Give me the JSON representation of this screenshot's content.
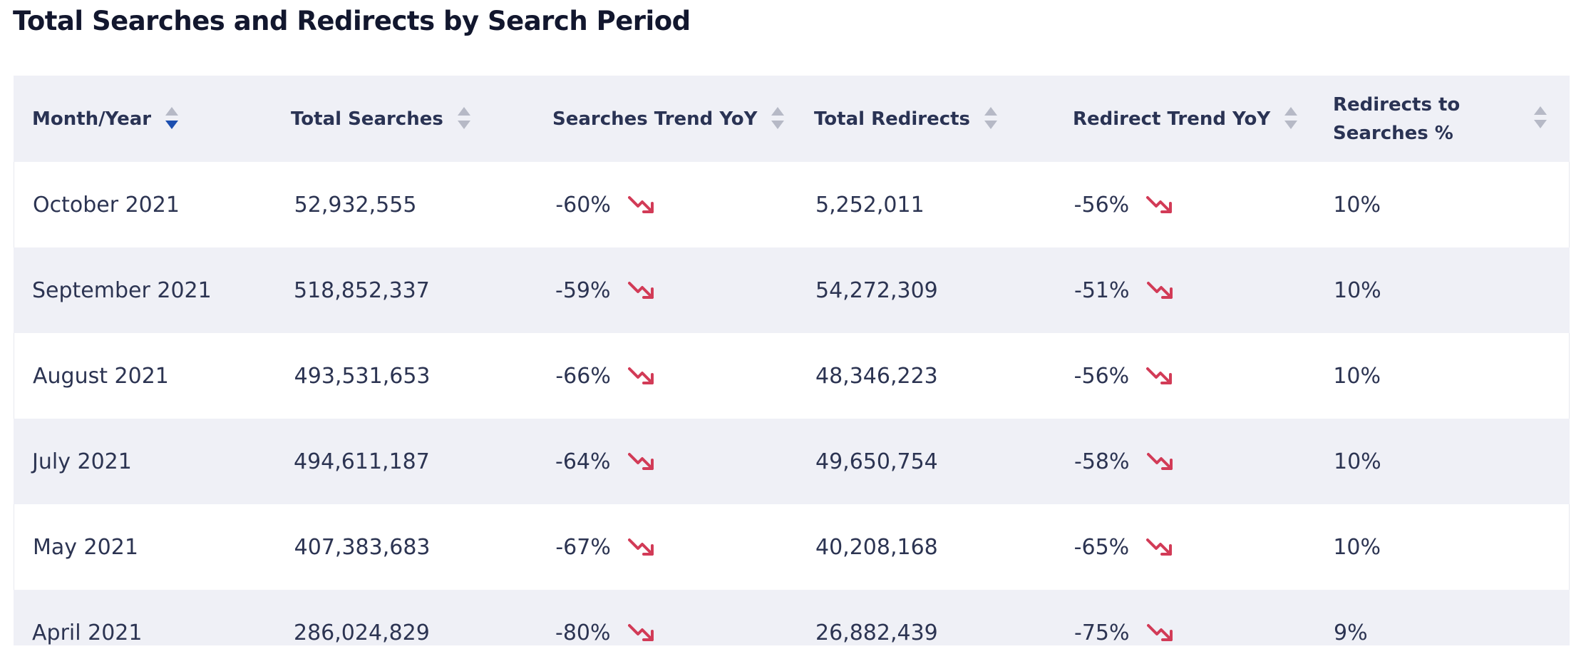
{
  "page": {
    "title": "Total Searches and Redirects by Search Period"
  },
  "table": {
    "columns": [
      {
        "label": "Month/Year",
        "sort": "descending"
      },
      {
        "label": "Total Searches",
        "sort": "none"
      },
      {
        "label": "Searches Trend YoY",
        "sort": "none"
      },
      {
        "label": "Total Redirects",
        "sort": "none"
      },
      {
        "label": "Redirect Trend YoY",
        "sort": "none"
      },
      {
        "label": "Redirects to Searches %",
        "sort": "none"
      }
    ],
    "rows": [
      {
        "month": "October 2021",
        "searches": "52,932,555",
        "searches_trend": "-60%",
        "redirects": "5,252,011",
        "redirect_trend": "-56%",
        "ratio": "10%"
      },
      {
        "month": "September 2021",
        "searches": "518,852,337",
        "searches_trend": "-59%",
        "redirects": "54,272,309",
        "redirect_trend": "-51%",
        "ratio": "10%"
      },
      {
        "month": "August 2021",
        "searches": "493,531,653",
        "searches_trend": "-66%",
        "redirects": "48,346,223",
        "redirect_trend": "-56%",
        "ratio": "10%"
      },
      {
        "month": "July 2021",
        "searches": "494,611,187",
        "searches_trend": "-64%",
        "redirects": "49,650,754",
        "redirect_trend": "-58%",
        "ratio": "10%"
      },
      {
        "month": "May 2021",
        "searches": "407,383,683",
        "searches_trend": "-67%",
        "redirects": "40,208,168",
        "redirect_trend": "-65%",
        "ratio": "10%"
      },
      {
        "month": "April 2021",
        "searches": "286,024,829",
        "searches_trend": "-80%",
        "redirects": "26,882,439",
        "redirect_trend": "-75%",
        "ratio": "9%"
      }
    ]
  },
  "icons": {
    "trend": "trend-down-icon",
    "sort": "sort-icon"
  },
  "colors": {
    "trend_down": "#d23b57",
    "sort_active": "#1c4fb0",
    "sort_inactive": "#b6b9c6",
    "header_bg": "#eff0f6",
    "alt_row_bg": "#eff0f6"
  }
}
